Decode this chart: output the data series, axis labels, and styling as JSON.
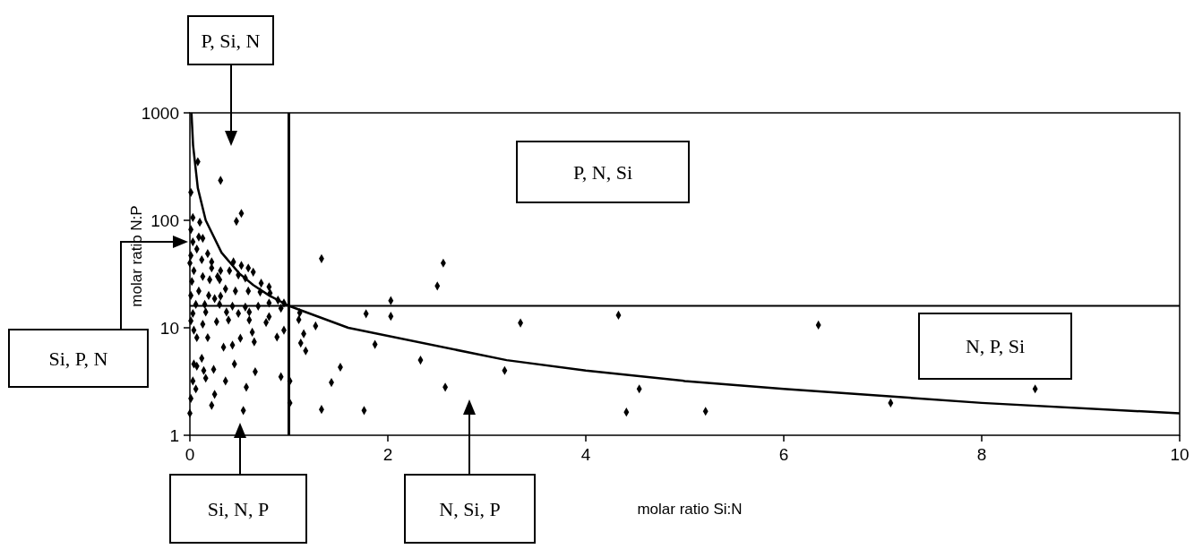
{
  "chart_data": {
    "type": "scatter",
    "xlabel": "molar ratio Si:N",
    "ylabel": "molar ratio N:P",
    "xlim": [
      0,
      10
    ],
    "xticks": [
      0,
      2,
      4,
      6,
      8,
      10
    ],
    "ylim": [
      1,
      1000
    ],
    "yticks": [
      1,
      10,
      100,
      1000
    ],
    "log": "y",
    "grid": false,
    "marker": "diamond",
    "series": [
      {
        "color": "#000000",
        "x": [
          0.08,
          0.31,
          0.01,
          0.52,
          0.47,
          0.03,
          0.1,
          0.01,
          0.09,
          0.03,
          0.13,
          0.07,
          0.18,
          0.01,
          0.12,
          0.22,
          0.44,
          0.52,
          0.59,
          0.64,
          0,
          0.04,
          0.22,
          0.31,
          0.4,
          0.13,
          0.28,
          0.49,
          0.56,
          0.02,
          0.2,
          0.3,
          0.72,
          0.8,
          0.09,
          0.36,
          0.46,
          0.59,
          0.71,
          0.81,
          0.01,
          0.19,
          0.25,
          0.31,
          0.89,
          0.95,
          0.8,
          0.06,
          0.15,
          0.3,
          0.43,
          0.56,
          0.69,
          0.03,
          0.16,
          0.37,
          0.49,
          0.6,
          0.01,
          0.13,
          0.27,
          0.39,
          0.6,
          0.77,
          0.8,
          0.04,
          0.95,
          0.88,
          0.63,
          0.07,
          0.18,
          0.51,
          0.43,
          0.34,
          0.65,
          0.12,
          0.04,
          0.07,
          0.45,
          0.24,
          0.66,
          0.14,
          0.92,
          1.01,
          0.36,
          0.16,
          0.03,
          0.06,
          0.57,
          0.25,
          0.01,
          1.01,
          0.22,
          0.54,
          0,
          1.33,
          0.92,
          1.11,
          1.1,
          1.27,
          1.15,
          1.12,
          1.17,
          1.52,
          1.43,
          1.33,
          2.56,
          2.5,
          2.03,
          1.78,
          2.03,
          3.34,
          4.33,
          1.87,
          2.33,
          3.18,
          2.58,
          4.54,
          1.76,
          4.41,
          5.21,
          6.35,
          8.54,
          7.08
        ],
        "values": [
          351,
          235,
          182,
          116,
          98,
          106,
          96,
          82,
          70,
          63,
          68,
          54,
          49,
          47,
          43,
          41,
          41,
          38,
          36,
          33,
          40,
          34,
          36,
          34,
          34,
          30,
          30,
          31,
          29,
          27,
          28,
          28,
          26,
          24,
          22,
          23,
          22,
          22,
          21.5,
          21,
          20,
          20,
          18.7,
          19.7,
          18.1,
          17,
          17,
          16.5,
          16.5,
          16.5,
          15.9,
          15.6,
          15.9,
          13.6,
          14,
          14,
          13.6,
          14,
          11.6,
          10.8,
          11.4,
          11.8,
          11.8,
          11.2,
          12.7,
          9.5,
          9.5,
          8.2,
          9.1,
          8.1,
          8.1,
          8.0,
          6.9,
          6.6,
          7.4,
          5.2,
          4.6,
          4.4,
          4.6,
          4.1,
          3.9,
          4.0,
          3.5,
          3.2,
          3.2,
          3.4,
          3.2,
          2.7,
          2.8,
          2.4,
          2.2,
          2.0,
          1.9,
          1.7,
          1.6,
          44,
          15.2,
          13.8,
          11.9,
          10.4,
          8.8,
          7.2,
          6.1,
          4.3,
          3.1,
          1.74,
          40,
          24.5,
          17.9,
          13.5,
          12.8,
          11.1,
          13.1,
          7.0,
          5.0,
          4.0,
          2.8,
          2.7,
          1.7,
          1.64,
          1.67,
          10.6,
          2.7,
          2.0
        ]
      },
      {
        "type": "line",
        "color": "#000000",
        "marker": "none",
        "x": [
          0.016,
          0.032,
          0.08,
          0.16,
          0.32,
          0.5,
          0.64,
          0.8,
          1,
          1.6,
          3.2,
          4,
          5,
          6,
          8,
          10
        ],
        "values": [
          1000,
          500,
          200,
          100,
          50,
          32,
          25,
          20,
          16,
          10,
          5,
          4,
          3.2,
          2.7,
          2,
          1.6
        ]
      }
    ],
    "ref_lines": [
      {
        "axis": "x",
        "value": 1,
        "color": "#000000"
      },
      {
        "axis": "y",
        "value": 16,
        "color": "#000000"
      }
    ],
    "annotations": [
      "P, Si, N",
      "P, N, Si",
      "Si, P, N",
      "N, P, Si",
      "Si, N, P",
      "N, Si, P"
    ]
  }
}
